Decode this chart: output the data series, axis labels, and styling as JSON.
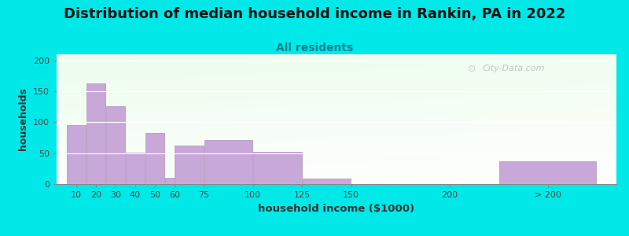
{
  "title": "Distribution of median household income in Rankin, PA in 2022",
  "subtitle": "All residents",
  "xlabel": "household income ($1000)",
  "ylabel": "households",
  "bar_values": [
    95,
    163,
    126,
    51,
    83,
    10,
    63,
    71,
    52,
    9,
    0,
    37
  ],
  "bar_widths": [
    10,
    10,
    10,
    10,
    10,
    10,
    15,
    25,
    25,
    25,
    50,
    50
  ],
  "bar_lefts": [
    5,
    15,
    25,
    35,
    45,
    55,
    60,
    75,
    100,
    125,
    150,
    225
  ],
  "bar_color": "#c8a8d8",
  "bar_edge_color": "#b090c0",
  "ylim": [
    0,
    210
  ],
  "yticks": [
    0,
    50,
    100,
    150,
    200
  ],
  "outer_bg": "#00e8e8",
  "title_fontsize": 13,
  "subtitle_fontsize": 10,
  "subtitle_color": "#008090",
  "watermark": "City-Data.com",
  "xlim": [
    0,
    285
  ],
  "xtick_positions": [
    10,
    20,
    30,
    40,
    50,
    60,
    75,
    100,
    125,
    150,
    200,
    250
  ],
  "xtick_labels": [
    "10",
    "20",
    "30",
    "40",
    "50",
    "60",
    "75",
    "100",
    "125",
    "150",
    "200",
    "> 200"
  ]
}
